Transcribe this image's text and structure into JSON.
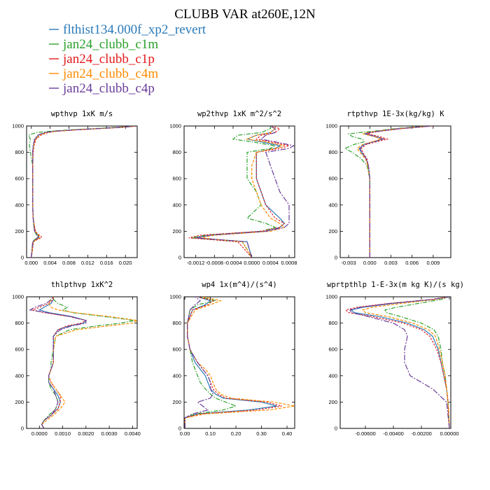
{
  "figure": {
    "title": "CLUBB VAR at260E,12N"
  },
  "legend": [
    {
      "label": "flthist134.000f_xp2_revert",
      "color": "#2b7bb9",
      "dash": ""
    },
    {
      "label": "jan24_clubb_c1m",
      "color": "#2ca02c",
      "dash": "6,2,1.5,2"
    },
    {
      "label": "jan24_clubb_c1p",
      "color": "#e41a1c",
      "dash": "2.5,2"
    },
    {
      "label": "jan24_clubb_c4m",
      "color": "#ff8c00",
      "dash": "4,2"
    },
    {
      "label": "jan24_clubb_c4p",
      "color": "#6a3d9a",
      "dash": "8,2,2,2"
    }
  ],
  "chart_data": [
    {
      "type": "line",
      "title": "wpthvp  1xK m/s",
      "xlim": [
        -0.001,
        0.0225
      ],
      "ylim": [
        1000,
        0
      ],
      "xticks": [
        0,
        0.004,
        0.008,
        0.012,
        0.016,
        0.02
      ],
      "xtick_labels": [
        "0.000",
        "0.004",
        "0.008",
        "0.012",
        "0.016",
        "0.020"
      ],
      "yticks": [
        0,
        200,
        400,
        600,
        800,
        1000
      ],
      "ytick_labels": [
        "0",
        "200",
        "400",
        "600",
        "800",
        "1000"
      ],
      "y": [
        0,
        120,
        140,
        150,
        160,
        180,
        200,
        250,
        300,
        400,
        500,
        600,
        700,
        800,
        850,
        900,
        930,
        950,
        960,
        970,
        980,
        990,
        1000
      ],
      "series": [
        {
          "values": [
            0,
            0.0004,
            0.001,
            0.0016,
            0.0016,
            0.0012,
            0.0008,
            0.0006,
            0.0004,
            0.0003,
            0.0003,
            0.0003,
            0.0003,
            0.0003,
            0.0004,
            0.0008,
            0.0015,
            0.003,
            0.005,
            0.009,
            0.014,
            0.019,
            0.0225
          ]
        },
        {
          "values": [
            0,
            0.0003,
            0.0008,
            0.0012,
            0.0013,
            0.001,
            0.0007,
            0.0005,
            0.0004,
            0.0003,
            0.0003,
            0.0003,
            0.0003,
            -0.0002,
            -0.0004,
            -0.0002,
            -0.0006,
            0.001,
            0.004,
            0.008,
            0.013,
            0.018,
            0.0225
          ]
        },
        {
          "values": [
            0,
            0.0005,
            0.0014,
            0.0022,
            0.0021,
            0.0014,
            0.0009,
            0.0006,
            0.0004,
            0.0003,
            0.0003,
            0.0003,
            0.0003,
            0.0004,
            0.0006,
            0.001,
            0.002,
            0.0035,
            0.0055,
            0.0095,
            0.0145,
            0.0195,
            0.0225
          ]
        },
        {
          "values": [
            0,
            0.0004,
            0.0012,
            0.0018,
            0.0018,
            0.0013,
            0.0008,
            0.0006,
            0.0004,
            0.0003,
            0.0003,
            0.0003,
            0.0003,
            0.0003,
            0.0005,
            0.0009,
            0.0017,
            0.0032,
            0.0052,
            0.0092,
            0.0142,
            0.0192,
            0.0225
          ]
        },
        {
          "values": [
            0,
            0.0003,
            0.0009,
            0.0014,
            0.0015,
            0.0011,
            0.0007,
            0.0005,
            0.0004,
            0.0003,
            0.0003,
            0.0003,
            0.0003,
            0.0003,
            0.0004,
            0.0007,
            0.0013,
            0.0028,
            0.0048,
            0.0088,
            0.0138,
            0.0188,
            0.0225
          ]
        }
      ]
    },
    {
      "type": "line",
      "title": "wp2thvp  1xK m^2/s^2",
      "xlim": [
        -0.00145,
        0.00092
      ],
      "ylim": [
        1000,
        0
      ],
      "xticks": [
        -0.0012,
        -0.0008,
        -0.0004,
        0,
        0.0004,
        0.0008
      ],
      "xtick_labels": [
        "-0.0012",
        "-0.0008",
        "-0.0004",
        "0.0000",
        "0.0004",
        "0.0008"
      ],
      "yticks": [
        0,
        200,
        400,
        600,
        800,
        1000
      ],
      "ytick_labels": [
        "0",
        "200",
        "400",
        "600",
        "800",
        "1000"
      ],
      "y": [
        0,
        120,
        150,
        170,
        200,
        230,
        260,
        300,
        400,
        500,
        600,
        700,
        800,
        830,
        850,
        880,
        900,
        930,
        950,
        980,
        1000
      ],
      "series": [
        {
          "values": [
            0,
            -0.0001,
            -0.0012,
            -0.0009,
            0.0003,
            0.0006,
            0.0007,
            0.0006,
            0.0003,
            0.0002,
            0.0001,
            0.0001,
            0.0001,
            0.0005,
            0.0006,
            0.0002,
            -0.0001,
            0.0001,
            0.0004,
            0.0005,
            0.0004
          ]
        },
        {
          "values": [
            0,
            -0.0002,
            -0.0013,
            -0.001,
            0.0002,
            0.0005,
            0.0003,
            -0.0001,
            0.0002,
            0.0001,
            -0.0001,
            -0.0001,
            -0.0001,
            0.0004,
            0.0005,
            0,
            -0.0004,
            -0.0003,
            0.0002,
            0.0004,
            0.0004
          ]
        },
        {
          "values": [
            0,
            -0.0003,
            -0.00135,
            -0.0011,
            0.0002,
            0.0006,
            0.0007,
            0.0005,
            0.0003,
            0.0002,
            0.0001,
            0.0001,
            0.0001,
            0.0006,
            0.0008,
            0.0004,
            0.0001,
            0.0002,
            0.0005,
            0.0006,
            0.0004
          ]
        },
        {
          "values": [
            0,
            -0.0002,
            -0.0011,
            -0.0008,
            0.0004,
            0.0007,
            0.0006,
            0.0004,
            0.0002,
            0.0001,
            0,
            0,
            0.0001,
            0.0005,
            0.0007,
            0.0003,
            -0.0001,
            0.0001,
            0.0004,
            0.0005,
            0.0004
          ]
        },
        {
          "values": [
            0,
            -0.0001,
            -0.0012,
            -0.0009,
            0.0003,
            0.0007,
            0.0008,
            0.0008,
            0.0008,
            0.0006,
            0.0005,
            0.0004,
            0.0003,
            0.0008,
            0.0009,
            0.0005,
            0.0002,
            0.0003,
            0.0005,
            0.0005,
            0.0004
          ]
        }
      ]
    },
    {
      "type": "line",
      "title": "rtpthvp  1E-3x(kg/kg) K",
      "xlim": [
        -0.0042,
        0.0115
      ],
      "ylim": [
        1000,
        0
      ],
      "xticks": [
        -0.003,
        0,
        0.003,
        0.006,
        0.009
      ],
      "xtick_labels": [
        "-0.003",
        "0.000",
        "0.003",
        "0.006",
        "0.009"
      ],
      "yticks": [
        0,
        200,
        400,
        600,
        800,
        1000
      ],
      "ytick_labels": [
        "0",
        "200",
        "400",
        "600",
        "800",
        "1000"
      ],
      "y": [
        0,
        200,
        400,
        600,
        700,
        750,
        800,
        830,
        860,
        880,
        900,
        920,
        940,
        950,
        960,
        980,
        1000
      ],
      "series": [
        {
          "values": [
            0,
            0,
            0,
            0,
            -0.0002,
            -0.0005,
            -0.0012,
            -0.0015,
            -0.0008,
            0.0005,
            0.0018,
            0.0008,
            -0.0008,
            -0.0002,
            0.0012,
            0.0042,
            0.0085
          ]
        },
        {
          "values": [
            0,
            0,
            0,
            0,
            -0.0004,
            -0.0012,
            -0.0025,
            -0.0035,
            -0.0022,
            -0.0008,
            -0.001,
            -0.0025,
            -0.003,
            -0.0015,
            0.0005,
            0.0035,
            0.008
          ]
        },
        {
          "values": [
            0,
            0,
            0,
            0,
            -0.0002,
            -0.0004,
            -0.001,
            -0.0012,
            -0.0005,
            0.0009,
            0.0025,
            0.0014,
            -0.0003,
            0.0002,
            0.0015,
            0.0045,
            0.009
          ]
        },
        {
          "values": [
            0,
            0,
            0,
            0,
            -0.0003,
            -0.0006,
            -0.0014,
            -0.0018,
            -0.001,
            0.0003,
            0.0016,
            0.0006,
            -0.0009,
            -0.0004,
            0.001,
            0.004,
            0.0085
          ]
        },
        {
          "values": [
            0,
            0,
            0,
            0,
            -0.0002,
            -0.0005,
            -0.0011,
            -0.0014,
            -0.0007,
            0.0006,
            0.002,
            0.0009,
            -0.0006,
            -0.0001,
            0.0012,
            0.0042,
            0.0088
          ]
        }
      ]
    },
    {
      "type": "line",
      "title": "thlpthvp  1xK^2",
      "xlim": [
        -0.00055,
        0.0042
      ],
      "ylim": [
        1000,
        0
      ],
      "xticks": [
        0,
        0.001,
        0.002,
        0.003,
        0.004
      ],
      "xtick_labels": [
        "0.0000",
        "0.0010",
        "0.0020",
        "0.0030",
        "0.0040"
      ],
      "yticks": [
        0,
        200,
        400,
        600,
        800,
        1000
      ],
      "ytick_labels": [
        "0",
        "200",
        "400",
        "600",
        "800",
        "1000"
      ],
      "y": [
        0,
        30,
        60,
        100,
        150,
        200,
        250,
        300,
        350,
        400,
        450,
        500,
        600,
        700,
        750,
        780,
        800,
        820,
        850,
        880,
        900,
        920,
        950,
        980,
        1000
      ],
      "series": [
        {
          "values": [
            0.0002,
            0.0001,
            0.0002,
            0.0005,
            0.0008,
            0.0009,
            0.0008,
            0.0006,
            0.0004,
            0.0004,
            0.0005,
            0.0006,
            0.0006,
            0.0006,
            0.0008,
            0.0013,
            0.0019,
            0.002,
            0.0014,
            0.0004,
            0,
            0.0002,
            0.0005,
            0.0006,
            0.0006
          ]
        },
        {
          "values": [
            0.0002,
            0.0001,
            0.0002,
            0.0004,
            0.0007,
            0.0008,
            0.0007,
            0.0005,
            0.0004,
            0.0004,
            0.0005,
            0.0005,
            0.0006,
            0.0007,
            0.0013,
            0.0025,
            0.0035,
            0.0041,
            0.0028,
            0.0014,
            0.001,
            0.0012,
            0.0008,
            0.0006,
            0.0006
          ]
        },
        {
          "values": [
            0.0002,
            0.0001,
            0.0002,
            0.0005,
            0.0008,
            0.0009,
            0.0009,
            0.0007,
            0.0005,
            0.0004,
            0.0005,
            0.0006,
            0.0006,
            0.0006,
            0.0008,
            0.0012,
            0.0018,
            0.002,
            0.0013,
            0.0002,
            -0.0003,
            0,
            0.0004,
            0.0006,
            0.0006
          ]
        },
        {
          "values": [
            0.0002,
            0.0001,
            0.0003,
            0.0006,
            0.0009,
            0.0011,
            0.0009,
            0.0007,
            0.0005,
            0.0004,
            0.0005,
            0.0006,
            0.0006,
            0.0007,
            0.0016,
            0.003,
            0.004,
            0.0042,
            0.003,
            0.0015,
            0.0008,
            0.0005,
            0.0004,
            0.0005,
            0.0006
          ]
        },
        {
          "values": [
            0.0002,
            0.0001,
            0.0002,
            0.0005,
            0.0007,
            0.0008,
            0.0007,
            0.0006,
            0.0004,
            0.0004,
            0.0005,
            0.0006,
            0.0006,
            0.0006,
            0.0009,
            0.0014,
            0.002,
            0.002,
            0.0013,
            0.0003,
            -0.0004,
            -0.0002,
            0.0003,
            0.0005,
            0.0006
          ]
        }
      ]
    },
    {
      "type": "line",
      "title": "wp4  1x(m^4)/(s^4)",
      "xlim": [
        -0.003,
        0.43
      ],
      "ylim": [
        1000,
        0
      ],
      "xticks": [
        0,
        0.1,
        0.2,
        0.3,
        0.4
      ],
      "xtick_labels": [
        "0.00",
        "0.10",
        "0.20",
        "0.30",
        "0.40"
      ],
      "yticks": [
        0,
        200,
        400,
        600,
        800,
        1000
      ],
      "ytick_labels": [
        "0",
        "200",
        "400",
        "600",
        "800",
        "1000"
      ],
      "y": [
        0,
        80,
        110,
        140,
        170,
        200,
        230,
        260,
        300,
        350,
        400,
        450,
        500,
        600,
        700,
        800,
        900,
        940,
        970,
        1000
      ],
      "series": [
        {
          "values": [
            0,
            0,
            0.05,
            0.25,
            0.36,
            0.3,
            0.15,
            0.12,
            0.1,
            0.09,
            0.08,
            0.06,
            0.04,
            0.02,
            0.01,
            0.01,
            0.03,
            0.08,
            0.1,
            0.05
          ]
        },
        {
          "values": [
            0,
            0,
            0.04,
            0.15,
            0.2,
            0.16,
            0.12,
            0.1,
            0.08,
            0.06,
            0.05,
            0.04,
            0.03,
            0.02,
            0.01,
            0.01,
            0.02,
            0.05,
            0.12,
            0.06
          ]
        },
        {
          "values": [
            0,
            0,
            0.06,
            0.28,
            0.38,
            0.32,
            0.16,
            0.13,
            0.11,
            0.1,
            0.09,
            0.07,
            0.05,
            0.02,
            0.01,
            0.01,
            0.03,
            0.09,
            0.11,
            0.05
          ]
        },
        {
          "values": [
            0,
            0,
            0.08,
            0.33,
            0.43,
            0.35,
            0.18,
            0.14,
            0.12,
            0.11,
            0.1,
            0.08,
            0.05,
            0.02,
            0.01,
            0.01,
            0.04,
            0.1,
            0.14,
            0.07
          ]
        },
        {
          "values": [
            0,
            0,
            0.03,
            0.09,
            0.07,
            0.05,
            0.1,
            0.11,
            0.1,
            0.1,
            0.09,
            0.07,
            0.05,
            0.02,
            0.01,
            0.01,
            0.02,
            0.04,
            0.06,
            0.04
          ]
        }
      ]
    },
    {
      "type": "line",
      "title": "wprtpthlp  1-E-3x(m kg K)/(s kg)",
      "xlim": [
        -0.0078,
        0.0001
      ],
      "ylim": [
        1000,
        0
      ],
      "xticks": [
        -0.006,
        -0.004,
        -0.002,
        0
      ],
      "xtick_labels": [
        "-0.00600",
        "-0.00400",
        "-0.00200",
        "0.00000"
      ],
      "yticks": [
        0,
        200,
        400,
        600,
        800,
        1000
      ],
      "ytick_labels": [
        "0",
        "200",
        "400",
        "600",
        "800",
        "1000"
      ],
      "y": [
        0,
        200,
        300,
        400,
        500,
        600,
        700,
        750,
        800,
        850,
        880,
        900,
        920,
        950,
        980,
        1000
      ],
      "series": [
        {
          "values": [
            0,
            -0.0001,
            -0.0002,
            -0.0004,
            -0.0006,
            -0.0008,
            -0.0012,
            -0.0018,
            -0.003,
            -0.005,
            -0.0068,
            -0.007,
            -0.0062,
            -0.004,
            -0.0012,
            0
          ]
        },
        {
          "values": [
            0,
            -0.0001,
            -0.0002,
            -0.0003,
            -0.0005,
            -0.0006,
            -0.0008,
            -0.0011,
            -0.002,
            -0.0035,
            -0.0045,
            -0.0046,
            -0.0038,
            -0.0022,
            -0.0006,
            0
          ]
        },
        {
          "values": [
            0,
            -0.0001,
            -0.0002,
            -0.0004,
            -0.0006,
            -0.0009,
            -0.0014,
            -0.002,
            -0.0033,
            -0.0055,
            -0.0072,
            -0.0074,
            -0.0066,
            -0.0043,
            -0.0013,
            0
          ]
        },
        {
          "values": [
            0,
            -0.0001,
            -0.0002,
            -0.0003,
            -0.0005,
            -0.0007,
            -0.001,
            -0.0015,
            -0.0026,
            -0.0044,
            -0.006,
            -0.0062,
            -0.0055,
            -0.0034,
            -0.001,
            0
          ]
        },
        {
          "values": [
            0,
            -0.0002,
            -0.0012,
            -0.0028,
            -0.0032,
            -0.0032,
            -0.003,
            -0.0032,
            -0.004,
            -0.0058,
            -0.007,
            -0.0071,
            -0.0064,
            -0.0042,
            -0.0012,
            0
          ]
        }
      ]
    }
  ]
}
